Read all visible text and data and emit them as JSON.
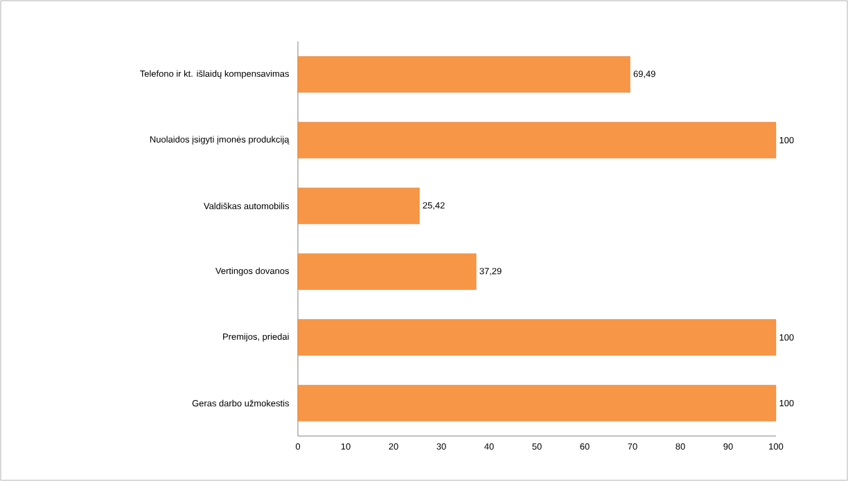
{
  "chart_data": {
    "type": "bar",
    "orientation": "horizontal",
    "categories": [
      "Telefono ir kt. išlaidų kompensavimas",
      "Nuolaidos įsigyti įmonės produkciją",
      "Valdiškas automobilis",
      "Vertingos dovanos",
      "Premijos, priedai",
      "Geras darbo užmokestis"
    ],
    "values": [
      69.49,
      100,
      25.42,
      37.29,
      100,
      100
    ],
    "value_labels": [
      "69,49",
      "100",
      "25,42",
      "37,29",
      "100",
      "100"
    ],
    "color": "#f79646",
    "xlim": [
      0,
      100
    ],
    "xticks": [
      0,
      10,
      20,
      30,
      40,
      50,
      60,
      70,
      80,
      90,
      100
    ]
  }
}
